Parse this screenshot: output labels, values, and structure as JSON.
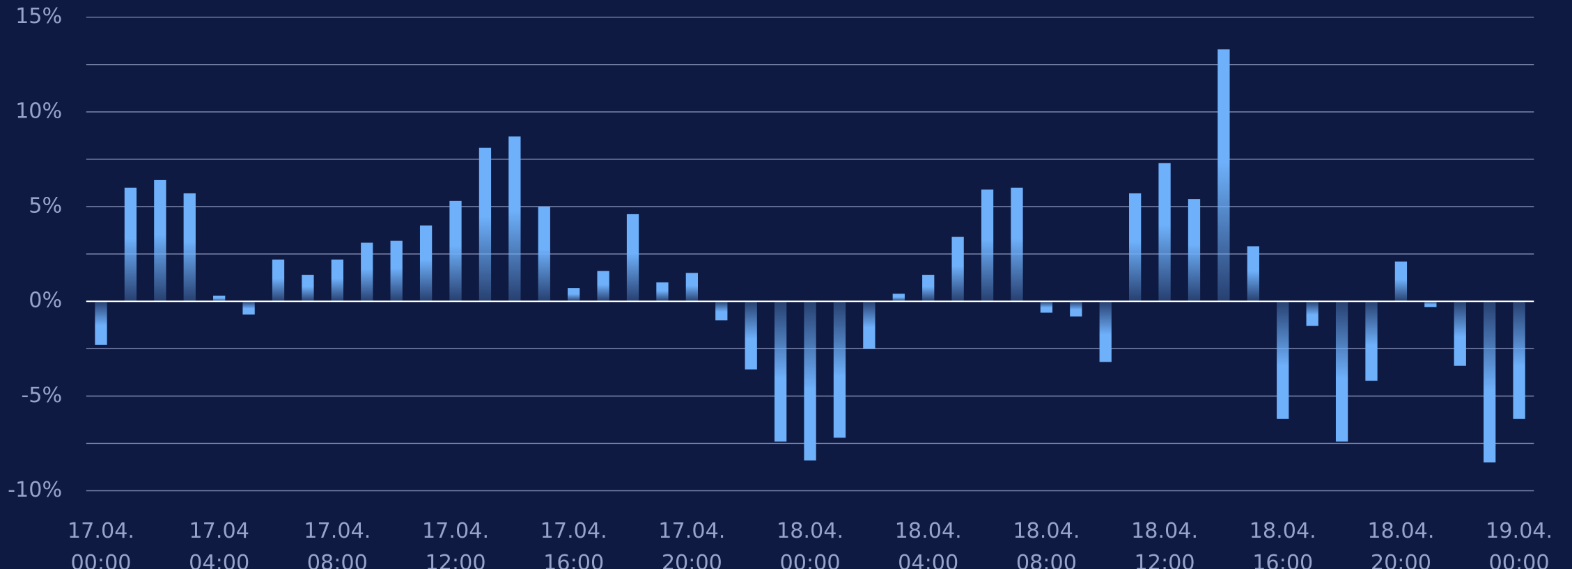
{
  "chart_data": {
    "type": "bar",
    "categories": [
      [
        "17.04.",
        "00:00"
      ],
      null,
      null,
      null,
      [
        "17.04",
        "04:00"
      ],
      null,
      null,
      null,
      [
        "17.04.",
        "08:00"
      ],
      null,
      null,
      null,
      [
        "17.04.",
        "12:00"
      ],
      null,
      null,
      null,
      [
        "17.04.",
        "16:00"
      ],
      null,
      null,
      null,
      [
        "17.04.",
        "20:00"
      ],
      null,
      null,
      null,
      [
        "18.04.",
        "00:00"
      ],
      null,
      null,
      null,
      [
        "18.04.",
        "04:00"
      ],
      null,
      null,
      null,
      [
        "18.04.",
        "08:00"
      ],
      null,
      null,
      null,
      [
        "18.04.",
        "12:00"
      ],
      null,
      null,
      null,
      [
        "18.04.",
        "16:00"
      ],
      null,
      null,
      null,
      [
        "18.04.",
        "20:00"
      ],
      null,
      null,
      null,
      [
        "19.04.",
        "00:00"
      ]
    ],
    "values": [
      -2.3,
      6.0,
      6.4,
      5.7,
      0.3,
      -0.7,
      2.2,
      1.4,
      2.2,
      3.1,
      3.2,
      4.0,
      5.3,
      8.1,
      8.7,
      5.0,
      0.7,
      1.6,
      4.6,
      1.0,
      1.5,
      -1.0,
      -3.6,
      -7.4,
      -8.4,
      -7.2,
      -2.5,
      0.4,
      1.4,
      3.4,
      5.9,
      6.0,
      -0.6,
      -0.8,
      -3.2,
      5.7,
      7.3,
      5.4,
      13.3,
      2.9,
      -6.2,
      -1.3,
      -7.4,
      -4.2,
      2.1,
      -0.3,
      -3.4,
      -8.5,
      -6.2
    ],
    "color": "#6eb0fa",
    "ylim": [
      -10,
      15
    ],
    "yticks": [
      {
        "value": -10,
        "label": "-10%"
      },
      {
        "value": -5,
        "label": "-5%"
      },
      {
        "value": 0,
        "label": "0%"
      },
      {
        "value": 5,
        "label": "5%"
      },
      {
        "value": 10,
        "label": "10%"
      },
      {
        "value": 15,
        "label": "15%"
      }
    ],
    "minor_gridlines": [
      -7.5,
      -2.5,
      2.5,
      7.5,
      12.5
    ],
    "grid": true
  }
}
